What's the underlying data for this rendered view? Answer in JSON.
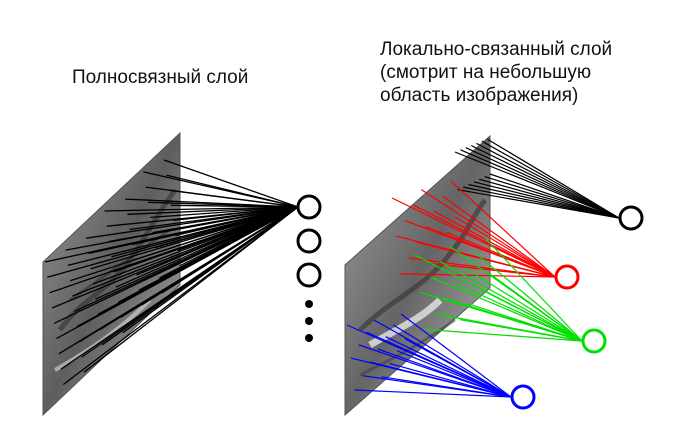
{
  "fully_connected": {
    "title": "Полносвязный слой"
  },
  "locally_connected": {
    "title_lines": [
      "Локально-связанный слой",
      "(смотрит на небольшую",
      "область изображения)"
    ]
  },
  "colors": {
    "line_black": "#000000",
    "line_red": "#ff0000",
    "line_green": "#00e000",
    "line_blue": "#0000ff",
    "image_gray": "#8a8a8a"
  },
  "icons": {
    "ellipsis": "vertical-dots"
  }
}
